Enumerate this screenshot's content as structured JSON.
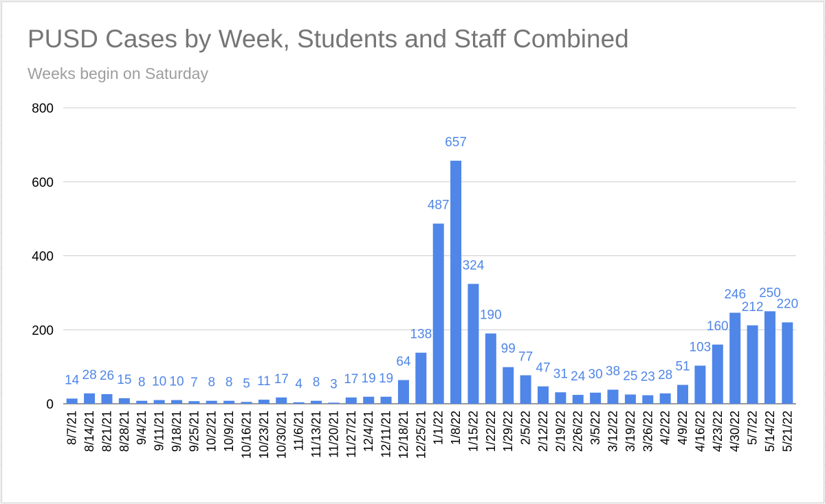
{
  "chart_data": {
    "type": "bar",
    "title": "PUSD Cases by Week, Students and Staff Combined",
    "subtitle": "Weeks begin on Saturday",
    "xlabel": "",
    "ylabel": "",
    "ylim": [
      0,
      800
    ],
    "yticks": [
      0,
      200,
      400,
      600,
      800
    ],
    "grid": true,
    "bar_color": "#4f86e8",
    "label_color": "#4f86e8",
    "categories": [
      "8/7/21",
      "8/14/21",
      "8/21/21",
      "8/28/21",
      "9/4/21",
      "9/11/21",
      "9/18/21",
      "9/25/21",
      "10/2/21",
      "10/9/21",
      "10/16/21",
      "10/23/21",
      "10/30/21",
      "11/6/21",
      "11/13/21",
      "11/20/21",
      "11/27/21",
      "12/4/21",
      "12/11/21",
      "12/18/21",
      "12/25/21",
      "1/1/22",
      "1/8/22",
      "1/15/22",
      "1/22/22",
      "1/29/22",
      "2/5/22",
      "2/12/22",
      "2/19/22",
      "2/26/22",
      "3/5/22",
      "3/12/22",
      "3/19/22",
      "3/26/22",
      "4/2/22",
      "4/9/22",
      "4/16/22",
      "4/23/22",
      "4/30/22",
      "5/7/22",
      "5/14/22",
      "5/21/22"
    ],
    "values": [
      14,
      28,
      26,
      15,
      8,
      10,
      10,
      7,
      8,
      8,
      5,
      11,
      17,
      4,
      8,
      3,
      17,
      19,
      19,
      64,
      138,
      487,
      657,
      324,
      190,
      99,
      77,
      47,
      31,
      24,
      30,
      38,
      25,
      23,
      28,
      51,
      103,
      160,
      246,
      212,
      250,
      220
    ]
  }
}
